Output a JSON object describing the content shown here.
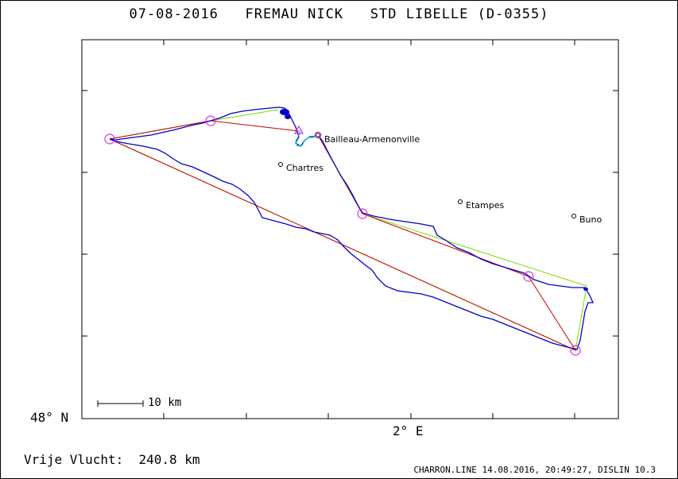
{
  "title": "07-08-2016   FREMAU NICK   STD LIBELLE (D-0355)",
  "axes": {
    "lat_label": "48° N",
    "lon_label": "2° E"
  },
  "scale_bar": {
    "label": "10 km"
  },
  "places": [
    {
      "name": "Bailleau-Armenonville"
    },
    {
      "name": "Chartres"
    },
    {
      "name": "Etampes"
    },
    {
      "name": "Buno"
    }
  ],
  "summary": "Vrije Vlucht:  240.8 km",
  "footer": "CHARRON.LINE 14.08.2016, 20:49:27, DISLIN 10.3",
  "colors": {
    "track": "#0000cc",
    "track_start": "#00cccc",
    "task_line": "#cc0000",
    "optimized_line": "#77dd00",
    "turnpoint": "#dd33dd"
  }
}
